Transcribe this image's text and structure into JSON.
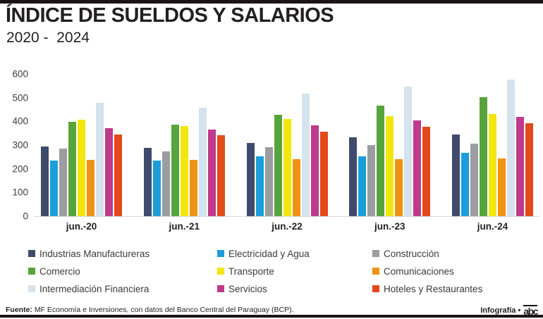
{
  "header": {
    "title": "ÍNDICE DE SUELDOS Y SALARIOS",
    "subtitle": "2020 -  2024"
  },
  "chart_data": {
    "type": "bar",
    "title": "ÍNDICE DE SUELDOS Y SALARIOS",
    "subtitle": "2020 -  2024",
    "categories": [
      "jun.-20",
      "jun.-21",
      "jun.-22",
      "jun.-23",
      "jun.-24"
    ],
    "series": [
      {
        "name": "Industrias Manufactureras",
        "color": "#3f4b6c",
        "values": [
          293,
          288,
          308,
          333,
          346
        ]
      },
      {
        "name": "Electricidad y Agua",
        "color": "#1b9ed9",
        "values": [
          236,
          235,
          252,
          252,
          266
        ]
      },
      {
        "name": "Construcción",
        "color": "#9b9da0",
        "values": [
          286,
          272,
          290,
          300,
          305
        ]
      },
      {
        "name": "Comercio",
        "color": "#58a43c",
        "values": [
          398,
          385,
          427,
          467,
          501
        ]
      },
      {
        "name": "Transporte",
        "color": "#f2e60f",
        "values": [
          406,
          381,
          409,
          423,
          431
        ]
      },
      {
        "name": "Comunicaciones",
        "color": "#ef9315",
        "values": [
          238,
          239,
          240,
          240,
          245
        ]
      },
      {
        "name": "Intermediación Financiera",
        "color": "#d4e3ed",
        "values": [
          479,
          458,
          516,
          548,
          576
        ]
      },
      {
        "name": "Servicios",
        "color": "#bf3a8b",
        "values": [
          370,
          365,
          383,
          403,
          419
        ]
      },
      {
        "name": "Hoteles y Restaurantes",
        "color": "#e24a1b",
        "values": [
          344,
          342,
          356,
          377,
          391
        ]
      }
    ],
    "ylim": [
      0,
      600
    ],
    "yticks": [
      600,
      500,
      400,
      300,
      200,
      100,
      0
    ],
    "grid": false,
    "legend_position": "bottom",
    "axis_line_color": "#d9dadc"
  },
  "footer": {
    "source_label": "Fuente:",
    "source_text": " MF Economía e Inversiones, con datos del Banco Central del Paraguay (BCP).",
    "credit": "Infografía •",
    "logo": "abc"
  }
}
